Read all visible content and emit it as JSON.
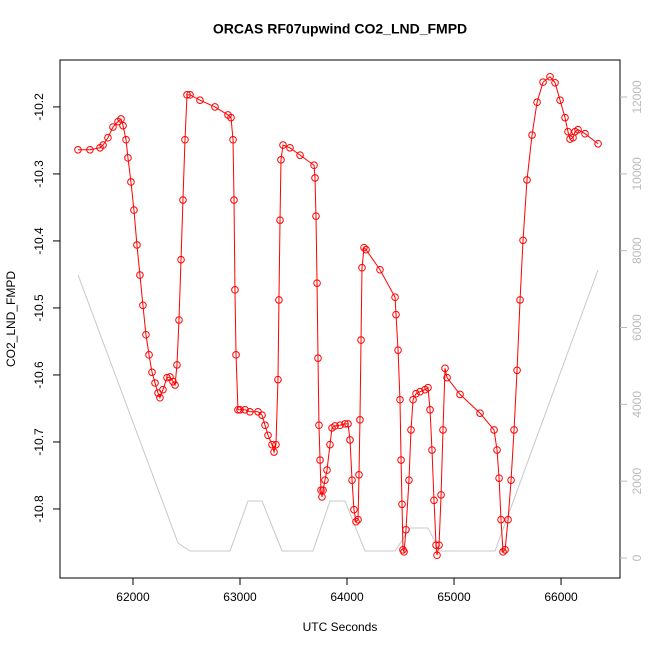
{
  "chart_data": {
    "type": "line",
    "title": "ORCAS RF07upwind CO2_LND_FMPD",
    "x_label": "UTC Seconds",
    "y_label": "CO2_LND_FMPD",
    "xlim": [
      61318,
      66551
    ],
    "xticks": [
      62000,
      63000,
      64000,
      65000,
      66000
    ],
    "ylim": [
      -10.903,
      -10.13
    ],
    "yticks": [
      -10.8,
      -10.7,
      -10.6,
      -10.5,
      -10.4,
      -10.3,
      -10.2
    ],
    "y2lim": [
      -521,
      12963
    ],
    "y2ticks": [
      0,
      2000,
      4000,
      6000,
      8000,
      10000,
      12000
    ],
    "series": [
      {
        "color": "#ff0000",
        "x": [
          61486,
          61598,
          61692,
          61720,
          61766,
          61813,
          61860,
          61888,
          61907,
          61935,
          61953,
          61981,
          62009,
          62037,
          62065,
          62093,
          62121,
          62150,
          62178,
          62206,
          62234,
          62252,
          62280,
          62318,
          62346,
          62374,
          62393,
          62411,
          62430,
          62449,
          62467,
          62486,
          62505,
          62533,
          62626,
          62766,
          62888,
          62916,
          62935,
          62944,
          62953,
          62963,
          62981,
          63000,
          63047,
          63093,
          63168,
          63206,
          63234,
          63262,
          63299,
          63318,
          63336,
          63355,
          63364,
          63374,
          63383,
          63402,
          63467,
          63561,
          63692,
          63701,
          63710,
          63720,
          63729,
          63738,
          63748,
          63757,
          63766,
          63776,
          63794,
          63813,
          63841,
          63860,
          63888,
          63935,
          63981,
          64009,
          64028,
          64047,
          64065,
          64084,
          64103,
          64112,
          64121,
          64131,
          64140,
          64159,
          64178,
          64308,
          64449,
          64458,
          64477,
          64495,
          64505,
          64514,
          64523,
          64533,
          64551,
          64579,
          64598,
          64617,
          64645,
          64682,
          64729,
          64757,
          64776,
          64794,
          64813,
          64832,
          64841,
          64860,
          64879,
          64897,
          64916,
          64935,
          65056,
          65243,
          65374,
          65402,
          65421,
          65439,
          65458,
          65477,
          65505,
          65533,
          65561,
          65589,
          65617,
          65645,
          65682,
          65729,
          65776,
          65832,
          65897,
          65944,
          65991,
          66037,
          66065,
          66084,
          66112,
          66131,
          66159,
          66224,
          66346
        ],
        "values": [
          -10.264,
          -10.264,
          -10.261,
          -10.257,
          -10.246,
          -10.23,
          -10.222,
          -10.218,
          -10.228,
          -10.249,
          -10.276,
          -10.312,
          -10.354,
          -10.406,
          -10.451,
          -10.496,
          -10.54,
          -10.57,
          -10.596,
          -10.612,
          -10.627,
          -10.634,
          -10.622,
          -10.604,
          -10.603,
          -10.61,
          -10.615,
          -10.585,
          -10.518,
          -10.428,
          -10.339,
          -10.249,
          -10.182,
          -10.182,
          -10.19,
          -10.2,
          -10.212,
          -10.216,
          -10.249,
          -10.339,
          -10.473,
          -10.57,
          -10.652,
          -10.652,
          -10.652,
          -10.655,
          -10.655,
          -10.66,
          -10.675,
          -10.69,
          -10.704,
          -10.715,
          -10.704,
          -10.607,
          -10.488,
          -10.369,
          -10.279,
          -10.257,
          -10.261,
          -10.272,
          -10.287,
          -10.306,
          -10.363,
          -10.463,
          -10.575,
          -10.675,
          -10.727,
          -10.772,
          -10.782,
          -10.772,
          -10.757,
          -10.742,
          -10.704,
          -10.679,
          -10.676,
          -10.675,
          -10.673,
          -10.673,
          -10.697,
          -10.757,
          -10.801,
          -10.819,
          -10.816,
          -10.749,
          -10.667,
          -10.548,
          -10.44,
          -10.41,
          -10.413,
          -10.443,
          -10.484,
          -10.51,
          -10.563,
          -10.637,
          -10.727,
          -10.793,
          -10.861,
          -10.864,
          -10.831,
          -10.757,
          -10.682,
          -10.637,
          -10.628,
          -10.625,
          -10.622,
          -10.619,
          -10.652,
          -10.712,
          -10.787,
          -10.854,
          -10.869,
          -10.854,
          -10.779,
          -10.682,
          -10.59,
          -10.604,
          -10.629,
          -10.657,
          -10.682,
          -10.712,
          -10.754,
          -10.816,
          -10.864,
          -10.861,
          -10.816,
          -10.757,
          -10.682,
          -10.593,
          -10.488,
          -10.399,
          -10.309,
          -10.242,
          -10.193,
          -10.163,
          -10.155,
          -10.164,
          -10.19,
          -10.216,
          -10.237,
          -10.248,
          -10.246,
          -10.237,
          -10.234,
          -10.24,
          -10.255
        ]
      },
      {
        "color": "#c8c8c8",
        "axis": "y2",
        "x": [
          61486,
          62421,
          62533,
          62907,
          63075,
          63206,
          63393,
          63682,
          63841,
          63981,
          64168,
          64449,
          64589,
          64757,
          64869,
          65383,
          66346
        ],
        "values": [
          7370,
          390,
          182,
          182,
          1484,
          1484,
          182,
          182,
          1484,
          1484,
          182,
          182,
          781,
          781,
          182,
          182,
          7500
        ]
      }
    ]
  }
}
